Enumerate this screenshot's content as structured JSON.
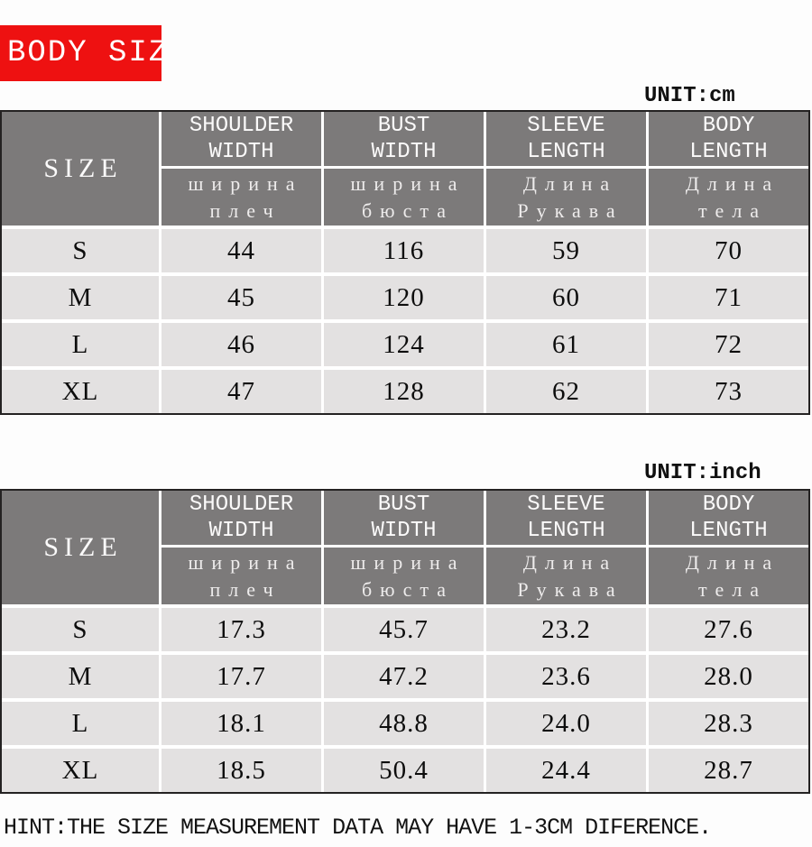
{
  "page": {
    "title": "BODY SIZE",
    "hint": "HINT:THE SIZE MEASUREMENT DATA MAY HAVE 1-3CM DIFERENCE.",
    "accent_red": "#ee1111",
    "header_gray": "#7c7a7a",
    "row_gray": "#e3e1e1"
  },
  "tables": [
    {
      "unit_label": "UNIT:cm",
      "size_header": "SIZE",
      "columns": [
        {
          "en1": "SHOULDER",
          "en2": "WIDTH",
          "ru1": "ширина",
          "ru2": "плеч"
        },
        {
          "en1": "BUST",
          "en2": "WIDTH",
          "ru1": "ширина",
          "ru2": "бюста"
        },
        {
          "en1": "SLEEVE",
          "en2": "LENGTH",
          "ru1": "Длина",
          "ru2": "Рукава"
        },
        {
          "en1": "BODY",
          "en2": "LENGTH",
          "ru1": "Длина",
          "ru2": "тела"
        }
      ],
      "rows": [
        {
          "size": "S",
          "values": [
            "44",
            "116",
            "59",
            "70"
          ]
        },
        {
          "size": "M",
          "values": [
            "45",
            "120",
            "60",
            "71"
          ]
        },
        {
          "size": "L",
          "values": [
            "46",
            "124",
            "61",
            "72"
          ]
        },
        {
          "size": "XL",
          "values": [
            "47",
            "128",
            "62",
            "73"
          ]
        }
      ]
    },
    {
      "unit_label": "UNIT:inch",
      "size_header": "SIZE",
      "columns": [
        {
          "en1": "SHOULDER",
          "en2": "WIDTH",
          "ru1": "ширина",
          "ru2": "плеч"
        },
        {
          "en1": "BUST",
          "en2": "WIDTH",
          "ru1": "ширина",
          "ru2": "бюста"
        },
        {
          "en1": "SLEEVE",
          "en2": "LENGTH",
          "ru1": "Длина",
          "ru2": "Рукава"
        },
        {
          "en1": "BODY",
          "en2": "LENGTH",
          "ru1": "Длина",
          "ru2": "тела"
        }
      ],
      "rows": [
        {
          "size": "S",
          "values": [
            "17.3",
            "45.7",
            "23.2",
            "27.6"
          ]
        },
        {
          "size": "M",
          "values": [
            "17.7",
            "47.2",
            "23.6",
            "28.0"
          ]
        },
        {
          "size": "L",
          "values": [
            "18.1",
            "48.8",
            "24.0",
            "28.3"
          ]
        },
        {
          "size": "XL",
          "values": [
            "18.5",
            "50.4",
            "24.4",
            "28.7"
          ]
        }
      ]
    }
  ],
  "chart_data": [
    {
      "type": "table",
      "title": "BODY SIZE",
      "unit": "cm",
      "columns": [
        "SIZE",
        "SHOULDER WIDTH (ширина плеч)",
        "BUST WIDTH (ширина бюста)",
        "SLEEVE LENGTH (Длина Рукава)",
        "BODY LENGTH (Длина тела)"
      ],
      "rows": [
        [
          "S",
          44,
          116,
          59,
          70
        ],
        [
          "M",
          45,
          120,
          60,
          71
        ],
        [
          "L",
          46,
          124,
          61,
          72
        ],
        [
          "XL",
          47,
          128,
          62,
          73
        ]
      ]
    },
    {
      "type": "table",
      "title": "BODY SIZE",
      "unit": "inch",
      "columns": [
        "SIZE",
        "SHOULDER WIDTH (ширина плеч)",
        "BUST WIDTH (ширина бюста)",
        "SLEEVE LENGTH (Длина Рукава)",
        "BODY LENGTH (Длина тела)"
      ],
      "rows": [
        [
          "S",
          17.3,
          45.7,
          23.2,
          27.6
        ],
        [
          "M",
          17.7,
          47.2,
          23.6,
          28.0
        ],
        [
          "L",
          18.1,
          48.8,
          24.0,
          28.3
        ],
        [
          "XL",
          18.5,
          50.4,
          24.4,
          28.7
        ]
      ]
    }
  ]
}
